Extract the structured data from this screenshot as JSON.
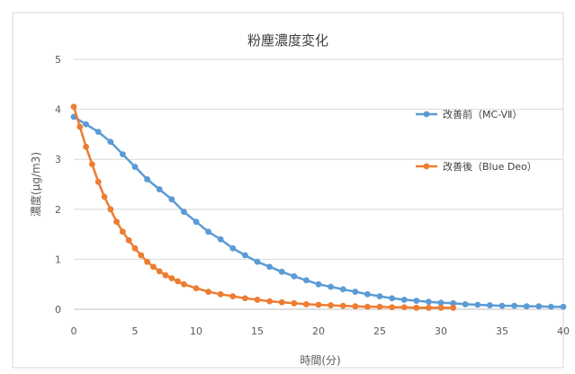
{
  "chart_data": {
    "type": "line",
    "title": "粉塵濃度変化",
    "xlabel": "時間(分)",
    "ylabel": "濃度(μg/m3)",
    "xlim": [
      0,
      40
    ],
    "ylim": [
      0,
      5
    ],
    "xticks": [
      0,
      5,
      10,
      15,
      20,
      25,
      30,
      35,
      40
    ],
    "yticks": [
      0,
      1,
      2,
      3,
      4,
      5
    ],
    "grid": "horizontal",
    "legend_position": "right",
    "series": [
      {
        "name": "改善前（MC-VⅡ）",
        "color": "#5B9BD5",
        "x": [
          0,
          1,
          2,
          3,
          4,
          5,
          6,
          7,
          8,
          9,
          10,
          11,
          12,
          13,
          14,
          15,
          16,
          17,
          18,
          19,
          20,
          21,
          22,
          23,
          24,
          25,
          26,
          27,
          28,
          29,
          30,
          31,
          32,
          33,
          34,
          35,
          36,
          37,
          38,
          39,
          40
        ],
        "values": [
          3.85,
          3.7,
          3.55,
          3.35,
          3.1,
          2.85,
          2.6,
          2.4,
          2.2,
          1.95,
          1.75,
          1.55,
          1.4,
          1.22,
          1.08,
          0.95,
          0.85,
          0.75,
          0.66,
          0.58,
          0.5,
          0.45,
          0.4,
          0.35,
          0.3,
          0.26,
          0.22,
          0.19,
          0.17,
          0.15,
          0.13,
          0.12,
          0.1,
          0.09,
          0.08,
          0.07,
          0.07,
          0.06,
          0.06,
          0.05,
          0.05
        ]
      },
      {
        "name": "改善後（Blue Deo）",
        "color": "#ED7D31",
        "x": [
          0,
          0.5,
          1,
          1.5,
          2,
          2.5,
          3,
          3.5,
          4,
          4.5,
          5,
          5.5,
          6,
          6.5,
          7,
          7.5,
          8,
          8.5,
          9,
          10,
          11,
          12,
          13,
          14,
          15,
          16,
          17,
          18,
          19,
          20,
          21,
          22,
          23,
          24,
          25,
          26,
          27,
          28,
          29,
          30,
          31
        ],
        "values": [
          4.05,
          3.65,
          3.25,
          2.9,
          2.55,
          2.25,
          2.0,
          1.75,
          1.55,
          1.38,
          1.22,
          1.08,
          0.95,
          0.85,
          0.76,
          0.68,
          0.62,
          0.56,
          0.5,
          0.42,
          0.35,
          0.3,
          0.26,
          0.22,
          0.19,
          0.16,
          0.14,
          0.12,
          0.1,
          0.09,
          0.08,
          0.07,
          0.06,
          0.05,
          0.05,
          0.04,
          0.04,
          0.03,
          0.03,
          0.03,
          0.03
        ]
      }
    ]
  }
}
